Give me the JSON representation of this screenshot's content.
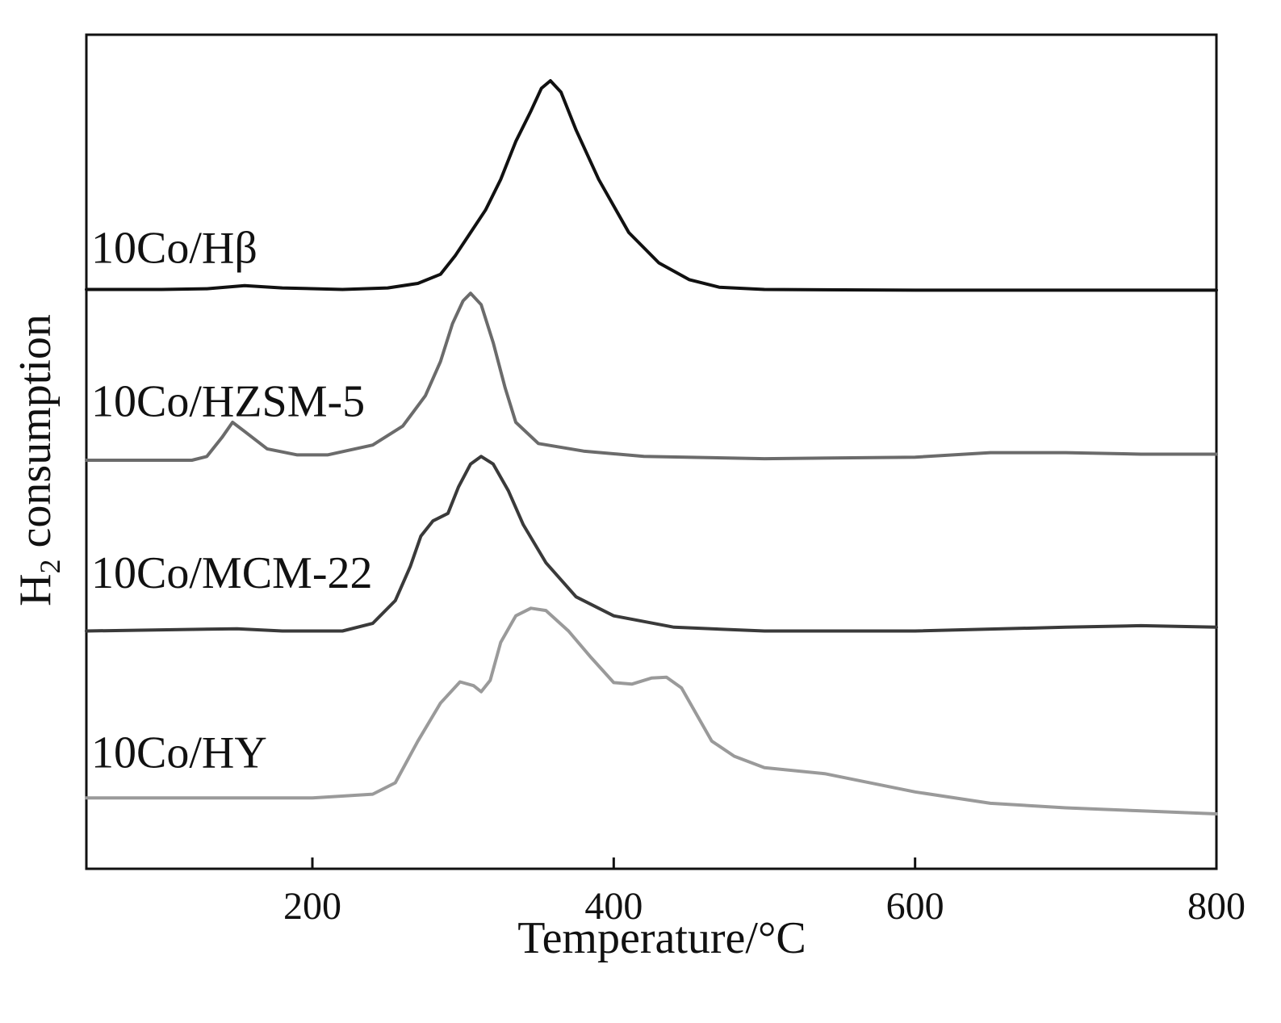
{
  "chart_data": {
    "type": "line",
    "title": "",
    "xlabel": "Temperature/°C",
    "ylabel_main": "H",
    "ylabel_sub": "2",
    "ylabel_rest": " consumption",
    "xlim": [
      50,
      800
    ],
    "ylim": [
      0,
      10
    ],
    "x_ticks": [
      200,
      400,
      600,
      800
    ],
    "x_tick_labels": [
      "200",
      "400",
      "600",
      "800"
    ],
    "y_ticks_shown": false,
    "grid": false,
    "legend": "none (series labelled directly at left of curves)",
    "series": [
      {
        "name": "10Co/Hβ",
        "color": "#111111",
        "points": [
          [
            50,
            7.25
          ],
          [
            100,
            7.25
          ],
          [
            130,
            7.26
          ],
          [
            155,
            7.3
          ],
          [
            180,
            7.27
          ],
          [
            220,
            7.25
          ],
          [
            250,
            7.27
          ],
          [
            270,
            7.33
          ],
          [
            285,
            7.45
          ],
          [
            295,
            7.7
          ],
          [
            305,
            8.0
          ],
          [
            315,
            8.3
          ],
          [
            325,
            8.7
          ],
          [
            335,
            9.2
          ],
          [
            345,
            9.6
          ],
          [
            352,
            9.9
          ],
          [
            358,
            10.0
          ],
          [
            365,
            9.85
          ],
          [
            375,
            9.35
          ],
          [
            390,
            8.7
          ],
          [
            410,
            8.0
          ],
          [
            430,
            7.6
          ],
          [
            450,
            7.38
          ],
          [
            470,
            7.28
          ],
          [
            500,
            7.25
          ],
          [
            600,
            7.24
          ],
          [
            700,
            7.24
          ],
          [
            800,
            7.24
          ]
        ]
      },
      {
        "name": "10Co/HZSM-5",
        "color": "#6b6b6b",
        "points": [
          [
            50,
            5.0
          ],
          [
            120,
            5.0
          ],
          [
            130,
            5.05
          ],
          [
            140,
            5.3
          ],
          [
            147,
            5.5
          ],
          [
            155,
            5.38
          ],
          [
            170,
            5.15
          ],
          [
            190,
            5.07
          ],
          [
            210,
            5.07
          ],
          [
            240,
            5.2
          ],
          [
            260,
            5.45
          ],
          [
            275,
            5.85
          ],
          [
            285,
            6.3
          ],
          [
            293,
            6.8
          ],
          [
            300,
            7.1
          ],
          [
            305,
            7.2
          ],
          [
            312,
            7.05
          ],
          [
            320,
            6.55
          ],
          [
            328,
            5.95
          ],
          [
            335,
            5.5
          ],
          [
            350,
            5.22
          ],
          [
            380,
            5.12
          ],
          [
            420,
            5.05
          ],
          [
            500,
            5.02
          ],
          [
            600,
            5.04
          ],
          [
            650,
            5.1
          ],
          [
            700,
            5.1
          ],
          [
            750,
            5.08
          ],
          [
            800,
            5.08
          ]
        ]
      },
      {
        "name": "10Co/MCM-22",
        "color": "#3a3a3a",
        "points": [
          [
            50,
            2.75
          ],
          [
            150,
            2.78
          ],
          [
            180,
            2.75
          ],
          [
            220,
            2.75
          ],
          [
            240,
            2.85
          ],
          [
            255,
            3.15
          ],
          [
            265,
            3.6
          ],
          [
            272,
            4.0
          ],
          [
            280,
            4.2
          ],
          [
            290,
            4.3
          ],
          [
            297,
            4.65
          ],
          [
            305,
            4.95
          ],
          [
            312,
            5.05
          ],
          [
            320,
            4.95
          ],
          [
            330,
            4.6
          ],
          [
            340,
            4.15
          ],
          [
            355,
            3.65
          ],
          [
            375,
            3.2
          ],
          [
            400,
            2.95
          ],
          [
            440,
            2.8
          ],
          [
            500,
            2.75
          ],
          [
            600,
            2.75
          ],
          [
            700,
            2.8
          ],
          [
            750,
            2.82
          ],
          [
            800,
            2.8
          ]
        ]
      },
      {
        "name": "10Co/HY",
        "color": "#9a9a9a",
        "points": [
          [
            50,
            0.55
          ],
          [
            150,
            0.55
          ],
          [
            200,
            0.55
          ],
          [
            240,
            0.6
          ],
          [
            255,
            0.75
          ],
          [
            270,
            1.3
          ],
          [
            285,
            1.8
          ],
          [
            298,
            2.08
          ],
          [
            307,
            2.03
          ],
          [
            312,
            1.95
          ],
          [
            318,
            2.1
          ],
          [
            325,
            2.6
          ],
          [
            335,
            2.95
          ],
          [
            345,
            3.05
          ],
          [
            355,
            3.02
          ],
          [
            370,
            2.75
          ],
          [
            385,
            2.4
          ],
          [
            400,
            2.07
          ],
          [
            412,
            2.05
          ],
          [
            425,
            2.13
          ],
          [
            435,
            2.14
          ],
          [
            445,
            2.0
          ],
          [
            455,
            1.65
          ],
          [
            465,
            1.3
          ],
          [
            480,
            1.1
          ],
          [
            500,
            0.95
          ],
          [
            540,
            0.87
          ],
          [
            600,
            0.63
          ],
          [
            650,
            0.48
          ],
          [
            700,
            0.42
          ],
          [
            750,
            0.38
          ],
          [
            800,
            0.34
          ]
        ]
      }
    ],
    "series_labels": [
      {
        "text": "10Co/Hβ",
        "x": 50,
        "y": 7.6
      },
      {
        "text": "10Co/HZSM-5",
        "x": 50,
        "y": 5.58
      },
      {
        "text": "10Co/MCM-22",
        "x": 50,
        "y": 3.32
      },
      {
        "text": "10Co/HY",
        "x": 50,
        "y": 0.95
      }
    ]
  }
}
